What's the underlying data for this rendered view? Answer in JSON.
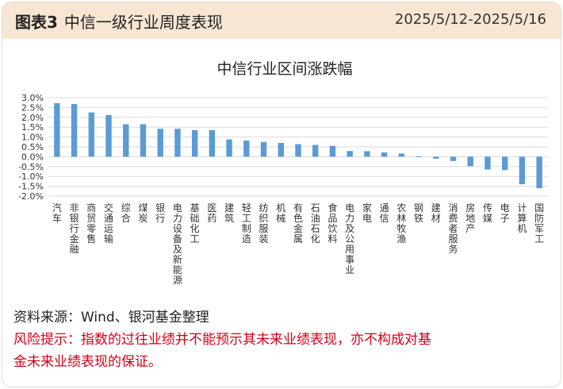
{
  "header": {
    "prefix": "图表3",
    "title": "中信一级行业周度表现",
    "date_range": "2025/5/12-2025/5/16"
  },
  "colors": {
    "bar": "#5b9bd5",
    "header_bg": "#f7e6d3",
    "risk_text": "#d0021b"
  },
  "chart_data": {
    "type": "bar",
    "title": "中信行业区间涨跌幅",
    "xlabel": "",
    "ylabel": "",
    "ylim": [
      -2.0,
      3.0
    ],
    "yticks": [
      "3.0%",
      "2.5%",
      "2.0%",
      "1.5%",
      "1.0%",
      "0.5%",
      "0.0%",
      "-0.5%",
      "-1.0%",
      "-1.5%",
      "-2.0%"
    ],
    "grid": true,
    "categories": [
      "汽车",
      "非银行金融",
      "商贸零售",
      "交通运输",
      "综合",
      "煤炭",
      "银行",
      "电力设备及新能源",
      "基础化工",
      "医药",
      "建筑",
      "轻工制造",
      "纺织服装",
      "机械",
      "有色金属",
      "石油石化",
      "食品饮料",
      "电力及公用事业",
      "家电",
      "通信",
      "农林牧渔",
      "钢铁",
      "建材",
      "消费者服务",
      "房地产",
      "传媒",
      "电子",
      "计算机",
      "国防军工"
    ],
    "values": [
      2.72,
      2.68,
      2.25,
      2.12,
      1.65,
      1.65,
      1.42,
      1.42,
      1.35,
      1.35,
      0.88,
      0.82,
      0.75,
      0.7,
      0.64,
      0.6,
      0.55,
      0.29,
      0.28,
      0.22,
      0.16,
      0.02,
      -0.1,
      -0.22,
      -0.48,
      -0.65,
      -0.68,
      -1.4,
      -1.6
    ]
  },
  "footer": {
    "source": "资料来源：Wind、银河基金整理",
    "risk_line1": "风险提示：指数的过往业绩并不能预示其未来业绩表现，亦不构成对基",
    "risk_line2": "金未来业绩表现的保证。"
  }
}
